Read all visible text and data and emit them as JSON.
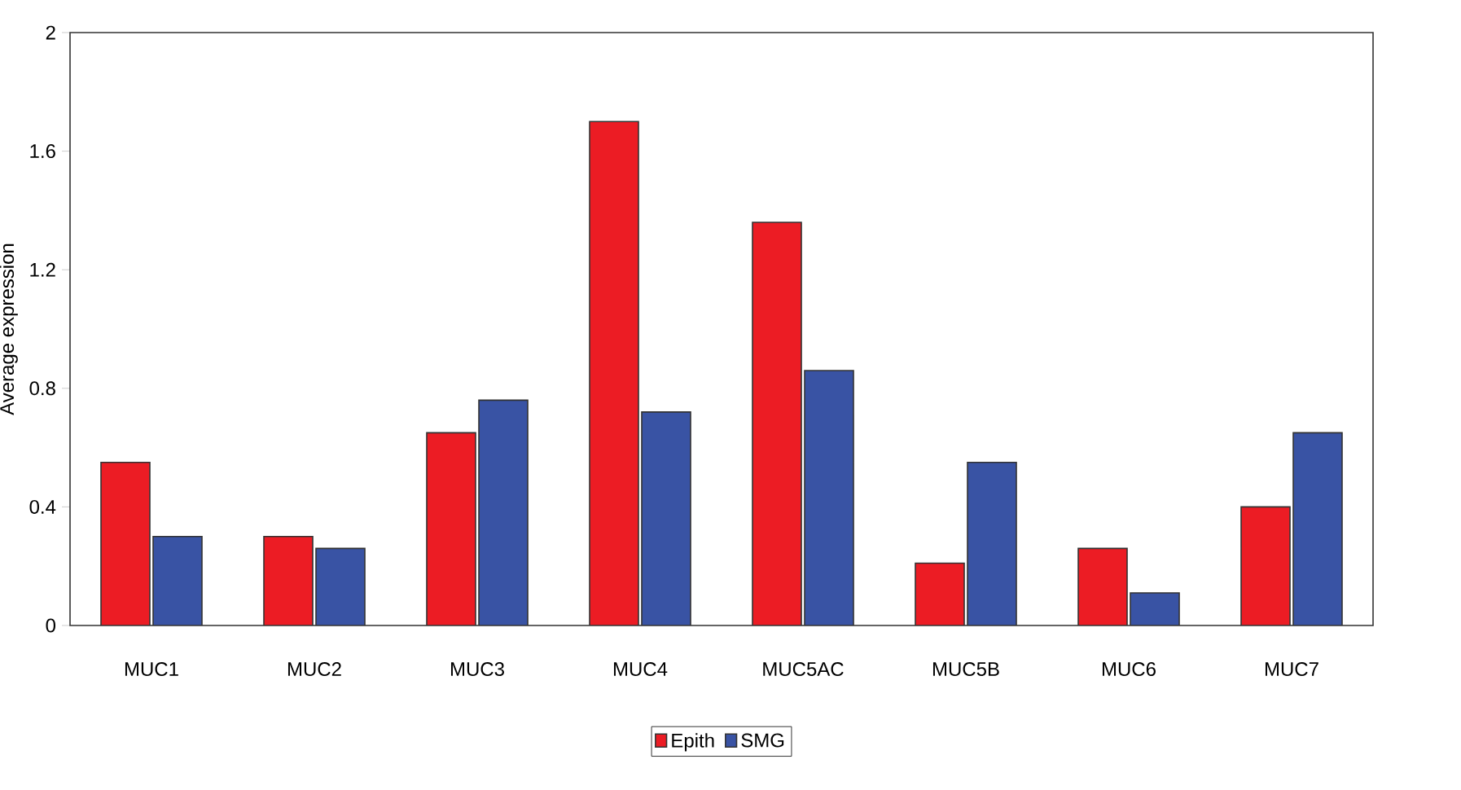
{
  "chart_data": {
    "type": "bar",
    "ylabel": "Average expression",
    "categories": [
      "MUC1",
      "MUC2",
      "MUC3",
      "MUC4",
      "MUC5AC",
      "MUC5B",
      "MUC6",
      "MUC7"
    ],
    "series": [
      {
        "name": "Epith",
        "color": "#ec1c24",
        "values": [
          0.55,
          0.3,
          0.65,
          1.7,
          1.36,
          0.21,
          0.26,
          0.4
        ]
      },
      {
        "name": "SMG",
        "color": "#3953a4",
        "values": [
          0.3,
          0.26,
          0.76,
          0.72,
          0.86,
          0.55,
          0.11,
          0.65
        ]
      }
    ],
    "ylim": [
      0,
      2
    ],
    "yticks": [
      0,
      0.4,
      0.8,
      1.2,
      1.6,
      2
    ],
    "grid": false,
    "legend": "bottom"
  }
}
